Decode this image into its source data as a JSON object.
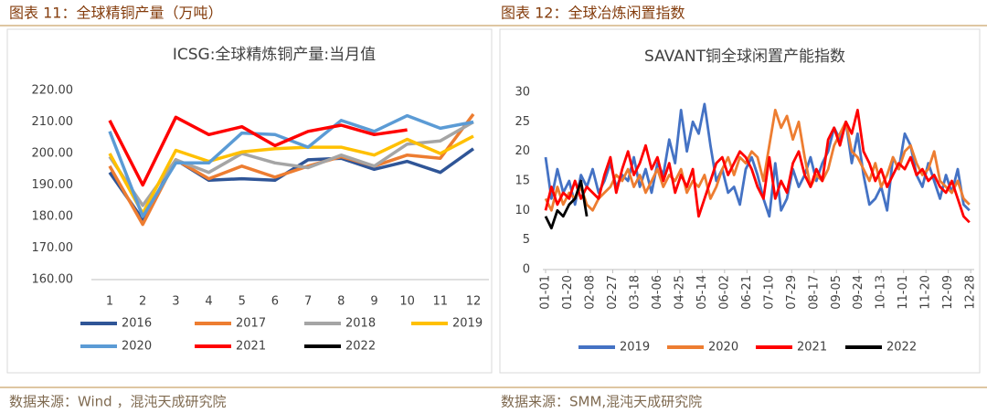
{
  "captions": [
    "图表 11：全球精铜产量（万吨）",
    "图表 12：全球冶炼闲置指数"
  ],
  "sources": [
    "数据来源：Wind ，混沌天成研究院",
    "数据来源：SMM,混沌天成研究院"
  ],
  "chart_data": [
    {
      "type": "line",
      "title": "ICSG:全球精炼铜产量:当月值",
      "categories": [
        "1",
        "2",
        "3",
        "4",
        "5",
        "6",
        "7",
        "8",
        "9",
        "10",
        "11",
        "12"
      ],
      "ylim": [
        160,
        220
      ],
      "yticks": [
        {
          "value": 160,
          "label": "160.00"
        },
        {
          "value": 170,
          "label": "170.00"
        },
        {
          "value": 180,
          "label": "180.00"
        },
        {
          "value": 190,
          "label": "190.00"
        },
        {
          "value": 200,
          "label": "200.00"
        },
        {
          "value": 210,
          "label": "210.00"
        },
        {
          "value": 220,
          "label": "220.00"
        }
      ],
      "grid": false,
      "legend": "bottom",
      "series": [
        {
          "name": "2016",
          "color": "#2f5597",
          "values": [
            194,
            179,
            198,
            191.5,
            192,
            191.5,
            198,
            198.5,
            195,
            197.5,
            194,
            201.5
          ]
        },
        {
          "name": "2017",
          "color": "#ed7d31",
          "values": [
            196,
            177.5,
            198,
            192,
            196,
            192.5,
            196,
            199,
            196,
            199.5,
            198.5,
            212.5
          ]
        },
        {
          "name": "2018",
          "color": "#a5a5a5",
          "values": [
            199,
            183.5,
            198,
            194,
            200,
            197,
            195.5,
            199.5,
            196,
            203,
            204,
            210
          ]
        },
        {
          "name": "2019",
          "color": "#ffc000",
          "values": [
            200,
            181,
            201,
            197.5,
            200.5,
            201.5,
            202,
            202,
            199.5,
            204.5,
            200,
            205.5
          ]
        },
        {
          "name": "2020",
          "color": "#5b9bd5",
          "values": [
            207,
            180,
            197,
            197,
            206.5,
            206,
            202,
            210.5,
            207,
            212,
            208,
            210
          ]
        },
        {
          "name": "2021",
          "color": "#ff0000",
          "values": [
            210.5,
            190,
            211.5,
            206,
            208.5,
            202.5,
            207,
            209,
            206,
            207.5,
            null,
            null
          ]
        },
        {
          "name": "2022",
          "color": "#000000",
          "values": [
            null,
            null,
            null,
            null,
            null,
            null,
            null,
            null,
            null,
            null,
            null,
            null
          ]
        }
      ]
    },
    {
      "type": "line",
      "title": "SAVANT铜全球闲置产能指数",
      "x": [
        1,
        6,
        11,
        16,
        21,
        26,
        31,
        36,
        41,
        46,
        51,
        56,
        61,
        66,
        71,
        76,
        81,
        86,
        91,
        96,
        101,
        106,
        111,
        116,
        121,
        126,
        131,
        136,
        141,
        146,
        151,
        156,
        161,
        166,
        171,
        176,
        181,
        186,
        191,
        196,
        201,
        206,
        211,
        216,
        221,
        226,
        231,
        236,
        241,
        246,
        251,
        256,
        261,
        266,
        271,
        276,
        281,
        286,
        291,
        296,
        301,
        306,
        311,
        316,
        321,
        326,
        331,
        336,
        341,
        346,
        351,
        356,
        361
      ],
      "xlim": [
        1,
        365
      ],
      "xticks": [
        {
          "value": 1,
          "label": "01-01"
        },
        {
          "value": 20,
          "label": "01-20"
        },
        {
          "value": 39,
          "label": "02-08"
        },
        {
          "value": 58,
          "label": "02-27"
        },
        {
          "value": 77,
          "label": "03-18"
        },
        {
          "value": 96,
          "label": "04-06"
        },
        {
          "value": 115,
          "label": "04-25"
        },
        {
          "value": 134,
          "label": "05-14"
        },
        {
          "value": 153,
          "label": "06-02"
        },
        {
          "value": 172,
          "label": "06-21"
        },
        {
          "value": 191,
          "label": "07-10"
        },
        {
          "value": 210,
          "label": "07-29"
        },
        {
          "value": 229,
          "label": "08-17"
        },
        {
          "value": 248,
          "label": "09-05"
        },
        {
          "value": 267,
          "label": "09-24"
        },
        {
          "value": 286,
          "label": "10-13"
        },
        {
          "value": 305,
          "label": "11-01"
        },
        {
          "value": 324,
          "label": "11-20"
        },
        {
          "value": 343,
          "label": "12-09"
        },
        {
          "value": 362,
          "label": "12-28"
        }
      ],
      "ylim": [
        0,
        30
      ],
      "yticks": [
        0,
        5,
        10,
        15,
        20,
        25,
        30
      ],
      "grid": false,
      "legend": "bottom",
      "series": [
        {
          "name": "2019",
          "color": "#4472c4",
          "values": [
            19,
            12,
            17,
            13,
            15,
            11,
            16,
            14,
            17,
            13,
            15,
            18,
            14,
            16,
            15,
            19,
            14,
            17,
            13,
            18,
            16,
            22,
            18,
            27,
            20,
            25,
            23,
            28,
            21,
            15,
            17,
            13,
            14,
            11,
            17,
            19,
            16,
            12,
            9,
            18,
            10,
            12,
            17,
            14,
            16,
            19,
            15,
            18,
            20,
            24,
            22,
            25,
            18,
            23,
            16,
            11,
            12,
            14,
            10,
            19,
            17,
            23,
            21,
            16,
            14,
            18,
            15,
            12,
            16,
            13,
            17,
            11,
            10
          ]
        },
        {
          "name": "2020",
          "color": "#ed7d31",
          "values": [
            12,
            10,
            14,
            11,
            13,
            12,
            14,
            11,
            10,
            12,
            13,
            14,
            16,
            15,
            17,
            14,
            16,
            13,
            15,
            17,
            14,
            16,
            15,
            17,
            13,
            15,
            14,
            16,
            12,
            14,
            17,
            19,
            16,
            19,
            18,
            20,
            19,
            15,
            21,
            27,
            24,
            26,
            22,
            25,
            19,
            14,
            16,
            15,
            17,
            21,
            23,
            25,
            20,
            19,
            17,
            15,
            18,
            14,
            16,
            19,
            17,
            20,
            21,
            18,
            16,
            17,
            20,
            15,
            14,
            13,
            15,
            12,
            11
          ]
        },
        {
          "name": "2021",
          "color": "#ff0000",
          "values": [
            10,
            14,
            11,
            13,
            12,
            15,
            12,
            14,
            13,
            12,
            16,
            19,
            13,
            17,
            20,
            16,
            18,
            21,
            17,
            19,
            15,
            18,
            13,
            16,
            14,
            17,
            9,
            12,
            15,
            18,
            19,
            16,
            18,
            20,
            19,
            17,
            14,
            12,
            19,
            12,
            15,
            13,
            18,
            20,
            16,
            14,
            17,
            15,
            22,
            24,
            21,
            25,
            23,
            27,
            20,
            18,
            15,
            17,
            14,
            16,
            18,
            17,
            19,
            16,
            17,
            15,
            16,
            14,
            13,
            15,
            12,
            9,
            8
          ]
        },
        {
          "name": "2022",
          "color": "#000000",
          "values": [
            9,
            7,
            10,
            9,
            11,
            12,
            15,
            9,
            null,
            null,
            null,
            null,
            null,
            null,
            null,
            null,
            null,
            null,
            null,
            null,
            null,
            null,
            null,
            null,
            null,
            null,
            null,
            null,
            null,
            null,
            null,
            null,
            null,
            null,
            null,
            null,
            null,
            null,
            null,
            null,
            null,
            null,
            null,
            null,
            null,
            null,
            null,
            null,
            null,
            null,
            null,
            null,
            null,
            null,
            null,
            null,
            null,
            null,
            null,
            null,
            null,
            null,
            null,
            null,
            null,
            null,
            null,
            null,
            null,
            null,
            null,
            null,
            null
          ]
        }
      ]
    }
  ]
}
